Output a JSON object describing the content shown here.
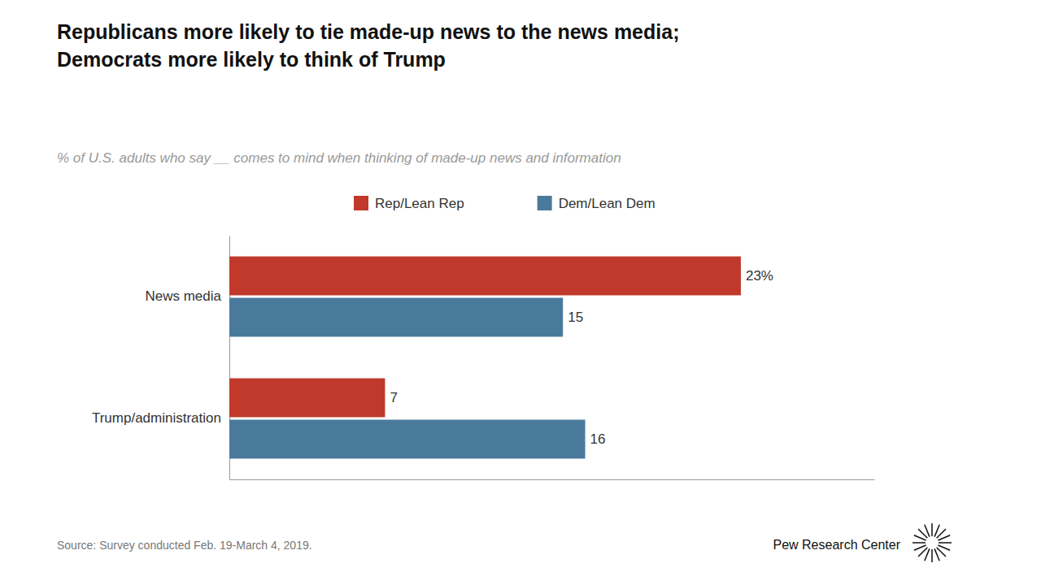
{
  "chart_data": {
    "type": "bar",
    "orientation": "horizontal",
    "title": "Republicans more likely to tie made-up news to the news media;\nDemocrats more likely to think of Trump",
    "subtitle": "% of U.S. adults who say __ comes to mind when thinking of made-up news and information",
    "categories": [
      "News media",
      "Trump/administration"
    ],
    "series": [
      {
        "name": "Rep/Lean Rep",
        "color": "#c0392b",
        "values": [
          23,
          7
        ],
        "value_labels": [
          "23%",
          "7"
        ]
      },
      {
        "name": "Dem/Lean Dem",
        "color": "#4a7a9b",
        "values": [
          15,
          16
        ],
        "value_labels": [
          "15",
          "16"
        ]
      }
    ],
    "xlim": [
      0,
      29
    ],
    "tick_labels": "y",
    "data_labels": true,
    "grid": false,
    "legend": "top",
    "annotations": [
      "Source: Survey conducted Feb. 19-March 4, 2019.",
      "Pew Research Center"
    ]
  }
}
